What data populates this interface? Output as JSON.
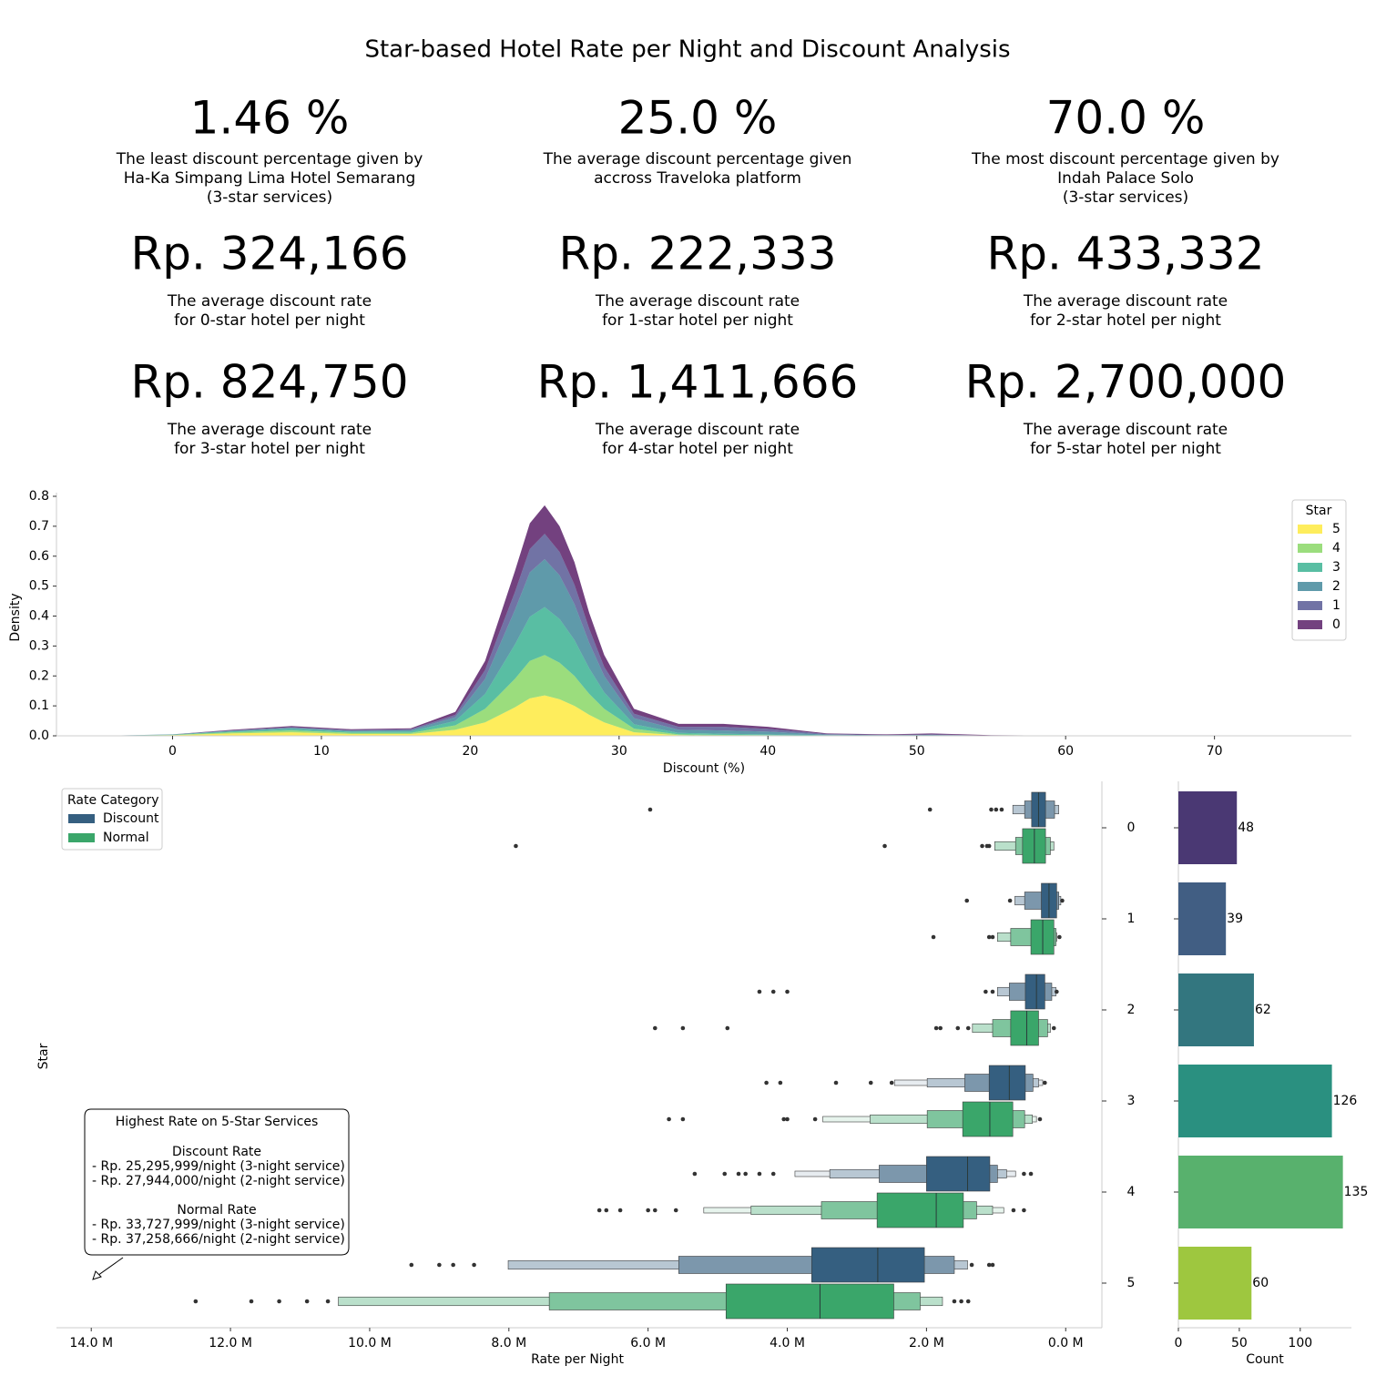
{
  "title": "Star-based Hotel Rate per Night and Discount Analysis",
  "kpis": [
    {
      "value": "1.46 %",
      "color": "#fa6646",
      "caption": [
        "The least discount percentage given by",
        "Ha-Ka Simpang Lima Hotel Semarang",
        "(3-star services)"
      ]
    },
    {
      "value": "25.0 %",
      "color": "#00ffff",
      "caption": [
        "The average discount percentage given",
        "accross Traveloka platform"
      ]
    },
    {
      "value": "70.0 %",
      "color": "#90ee90",
      "caption": [
        "The most discount percentage given by",
        "Indah Palace Solo",
        "(3-star services)"
      ]
    },
    {
      "value": "Rp. 324,166",
      "color": "#440154",
      "caption": [
        "The average discount rate",
        "for 0-star hotel per night"
      ]
    },
    {
      "value": "Rp. 222,333",
      "color": "#414487",
      "caption": [
        "The average discount rate",
        "for 1-star hotel per night"
      ]
    },
    {
      "value": "Rp. 433,332",
      "color": "#2a788e",
      "caption": [
        "The average discount rate",
        "for 2-star hotel per night"
      ]
    },
    {
      "value": "Rp. 824,750",
      "color": "#22a884",
      "caption": [
        "The average discount rate",
        "for 3-star hotel per night"
      ]
    },
    {
      "value": "Rp. 1,411,666",
      "color": "#7ad151",
      "caption": [
        "The average discount rate",
        "for 4-star hotel per night"
      ]
    },
    {
      "value": "Rp. 2,700,000",
      "color": "#fde725",
      "caption": [
        "The average discount rate",
        "for 5-star hotel per night"
      ]
    }
  ],
  "chart_data": [
    {
      "type": "area",
      "stacked": true,
      "x": [
        -5,
        0,
        4,
        8,
        12,
        16,
        19,
        21,
        22,
        23,
        24,
        25,
        26,
        27,
        28,
        29,
        31,
        34,
        37,
        40,
        44,
        48,
        51,
        55,
        60,
        70,
        75
      ],
      "series": [
        {
          "name": "5",
          "color": "#fde725",
          "values": [
            0,
            0.002,
            0.008,
            0.012,
            0.006,
            0.006,
            0.02,
            0.045,
            0.07,
            0.095,
            0.125,
            0.135,
            0.122,
            0.1,
            0.07,
            0.045,
            0.012,
            0.002,
            0.001,
            0,
            0,
            0,
            0,
            0,
            0,
            0,
            0
          ]
        },
        {
          "name": "4",
          "color": "#7ad151",
          "values": [
            0,
            0.001,
            0.004,
            0.006,
            0.004,
            0.004,
            0.015,
            0.045,
            0.07,
            0.095,
            0.125,
            0.135,
            0.122,
            0.1,
            0.07,
            0.045,
            0.012,
            0.003,
            0.002,
            0.002,
            0.001,
            0,
            0,
            0,
            0,
            0,
            0
          ]
        },
        {
          "name": "3",
          "color": "#22a884",
          "values": [
            0,
            0.001,
            0.003,
            0.005,
            0.004,
            0.005,
            0.015,
            0.05,
            0.083,
            0.115,
            0.148,
            0.16,
            0.146,
            0.12,
            0.085,
            0.055,
            0.015,
            0.005,
            0.004,
            0.003,
            0.001,
            0.001,
            0.001,
            0,
            0,
            0,
            0
          ]
        },
        {
          "name": "2",
          "color": "#2a788e",
          "values": [
            0,
            0.001,
            0.002,
            0.004,
            0.003,
            0.004,
            0.012,
            0.05,
            0.083,
            0.115,
            0.148,
            0.16,
            0.146,
            0.12,
            0.085,
            0.055,
            0.02,
            0.01,
            0.011,
            0.009,
            0.002,
            0.001,
            0.002,
            0.001,
            0,
            0,
            0
          ]
        },
        {
          "name": "1",
          "color": "#414487",
          "values": [
            0,
            0,
            0.001,
            0.002,
            0.002,
            0.003,
            0.008,
            0.03,
            0.045,
            0.06,
            0.078,
            0.085,
            0.078,
            0.065,
            0.047,
            0.03,
            0.015,
            0.01,
            0.012,
            0.009,
            0.002,
            0.001,
            0.002,
            0,
            0,
            0,
            0
          ]
        },
        {
          "name": "0",
          "color": "#440154",
          "values": [
            0,
            0,
            0.002,
            0.004,
            0.003,
            0.003,
            0.01,
            0.03,
            0.049,
            0.07,
            0.086,
            0.095,
            0.086,
            0.075,
            0.053,
            0.04,
            0.016,
            0.01,
            0.01,
            0.007,
            0.002,
            0.002,
            0.003,
            0.001,
            0.001,
            0.001,
            0
          ]
        }
      ],
      "xlabel": "Discount (%)",
      "ylabel": "Density",
      "xlim": [
        -7.8,
        79.2
      ],
      "ylim": [
        0,
        0.8
      ],
      "xticks": [
        0,
        10,
        20,
        30,
        40,
        50,
        60,
        70
      ],
      "yticks": [
        {
          "value": 0,
          "label": "0.0"
        },
        {
          "value": 0.1,
          "label": "0.1"
        },
        {
          "value": 0.2,
          "label": "0.2"
        },
        {
          "value": 0.3,
          "label": "0.3"
        },
        {
          "value": 0.4,
          "label": "0.4"
        },
        {
          "value": 0.5,
          "label": "0.5"
        },
        {
          "value": 0.6,
          "label": "0.6"
        },
        {
          "value": 0.7,
          "label": "0.7"
        },
        {
          "value": 0.8,
          "label": "0.8"
        }
      ],
      "legend_title": "Star",
      "legend_loc": "upper right"
    },
    {
      "type": "boxen",
      "orientation": "horizontal",
      "categories": [
        "0",
        "1",
        "2",
        "3",
        "4",
        "5"
      ],
      "xlabel": "Rate per Night",
      "ylabel": "Star",
      "xlim": [
        14.5,
        -0.52
      ],
      "xticks": [
        {
          "value": 14,
          "label": "14.0 M"
        },
        {
          "value": 12,
          "label": "12.0 M"
        },
        {
          "value": 10,
          "label": "10.0 M"
        },
        {
          "value": 8,
          "label": "8.0 M"
        },
        {
          "value": 6,
          "label": "6.0 M"
        },
        {
          "value": 4,
          "label": "4.0 M"
        },
        {
          "value": 2,
          "label": "2.0 M"
        },
        {
          "value": 0,
          "label": "0.0 M"
        }
      ],
      "legend_title": "Rate Category",
      "legend_loc": "upper left",
      "series": [
        {
          "name": "Discount",
          "color": "#355f80",
          "data": [
            {
              "median": 0.39,
              "levels": [
                [
                  0.29,
                  0.49
                ],
                [
                  0.16,
                  0.59
                ],
                [
                  0.1,
                  0.76
                ]
              ],
              "outliers": [
                0.92,
                1.0,
                1.07,
                1.95,
                5.97
              ]
            },
            {
              "median": 0.24,
              "levels": [
                [
                  0.13,
                  0.35
                ],
                [
                  0.1,
                  0.59
                ],
                [
                  0.07,
                  0.73
                ]
              ],
              "outliers": [
                0.05,
                0.8,
                1.42
              ]
            },
            {
              "median": 0.42,
              "levels": [
                [
                  0.3,
                  0.58
                ],
                [
                  0.2,
                  0.81
                ],
                [
                  0.14,
                  0.98
                ]
              ],
              "outliers": [
                0.13,
                1.05,
                1.15,
                4.0,
                4.2,
                4.4
              ]
            },
            {
              "median": 0.81,
              "levels": [
                [
                  0.58,
                  1.1
                ],
                [
                  0.47,
                  1.45
                ],
                [
                  0.39,
                  1.99
                ],
                [
                  0.33,
                  2.46
                ]
              ],
              "outliers": [
                0.3,
                2.5,
                2.8,
                3.3,
                4.1,
                4.3
              ]
            },
            {
              "median": 1.41,
              "levels": [
                [
                  1.09,
                  2.0
                ],
                [
                  0.98,
                  2.68
                ],
                [
                  0.85,
                  3.39
                ],
                [
                  0.72,
                  3.89
                ]
              ],
              "outliers": [
                0.5,
                0.6,
                4.2,
                4.4,
                4.6,
                4.7,
                4.9,
                5.33
              ]
            },
            {
              "median": 2.7,
              "levels": [
                [
                  2.03,
                  3.65
                ],
                [
                  1.6,
                  5.56
                ],
                [
                  1.41,
                  8.01
                ]
              ],
              "outliers": [
                1.05,
                1.1,
                1.35,
                8.5,
                8.8,
                9.0,
                9.4
              ]
            }
          ]
        },
        {
          "name": "Normal",
          "color": "#3aa66a",
          "data": [
            {
              "median": 0.45,
              "levels": [
                [
                  0.29,
                  0.62
                ],
                [
                  0.22,
                  0.72
                ],
                [
                  0.17,
                  1.02
                ]
              ],
              "outliers": [
                1.1,
                1.13,
                1.2,
                2.6,
                7.9
              ]
            },
            {
              "median": 0.33,
              "levels": [
                [
                  0.17,
                  0.5
                ],
                [
                  0.14,
                  0.79
                ],
                [
                  0.13,
                  0.98
                ]
              ],
              "outliers": [
                0.09,
                1.05,
                1.1,
                1.9
              ]
            },
            {
              "median": 0.56,
              "levels": [
                [
                  0.39,
                  0.79
                ],
                [
                  0.26,
                  1.05
                ],
                [
                  0.22,
                  1.34
                ]
              ],
              "outliers": [
                0.17,
                1.4,
                1.55,
                1.8,
                1.86,
                4.86,
                5.5,
                5.9
              ]
            },
            {
              "median": 1.09,
              "levels": [
                [
                  0.76,
                  1.48
                ],
                [
                  0.59,
                  1.99
                ],
                [
                  0.48,
                  2.81
                ],
                [
                  0.42,
                  3.49
                ]
              ],
              "outliers": [
                0.37,
                3.6,
                4.0,
                4.05,
                5.5,
                5.7
              ]
            },
            {
              "median": 1.86,
              "levels": [
                [
                  1.47,
                  2.71
                ],
                [
                  1.28,
                  3.51
                ],
                [
                  1.05,
                  4.52
                ],
                [
                  0.89,
                  5.2
                ]
              ],
              "outliers": [
                0.6,
                0.75,
                5.6,
                5.9,
                6.0,
                6.4,
                6.6,
                6.7
              ]
            },
            {
              "median": 3.53,
              "levels": [
                [
                  2.47,
                  4.88
                ],
                [
                  2.09,
                  7.42
                ],
                [
                  1.77,
                  10.45
                ]
              ],
              "outliers": [
                1.4,
                1.5,
                1.6,
                10.6,
                10.9,
                11.3,
                11.7,
                12.5
              ]
            }
          ]
        }
      ],
      "annotation": {
        "title": "Highest Rate on 5-Star Services",
        "sections": [
          {
            "heading": "Discount Rate",
            "lines": [
              "- Rp. 25,295,999/night (3-night service)",
              "- Rp. 27,944,000/night (2-night service)"
            ]
          },
          {
            "heading": "Normal Rate",
            "lines": [
              "- Rp. 33,727,999/night (3-night service)",
              "- Rp. 37,258,666/night (2-night service)"
            ]
          }
        ]
      }
    },
    {
      "type": "bar",
      "orientation": "horizontal",
      "values": [
        48,
        39,
        62,
        126,
        135,
        60
      ],
      "colors": [
        "#4a3873",
        "#415e83",
        "#33767f",
        "#2a9080",
        "#58b16d",
        "#9ec73f"
      ],
      "xlabel": "Count",
      "xlim": [
        0,
        142
      ],
      "xticks": [
        0,
        50,
        100
      ]
    }
  ]
}
